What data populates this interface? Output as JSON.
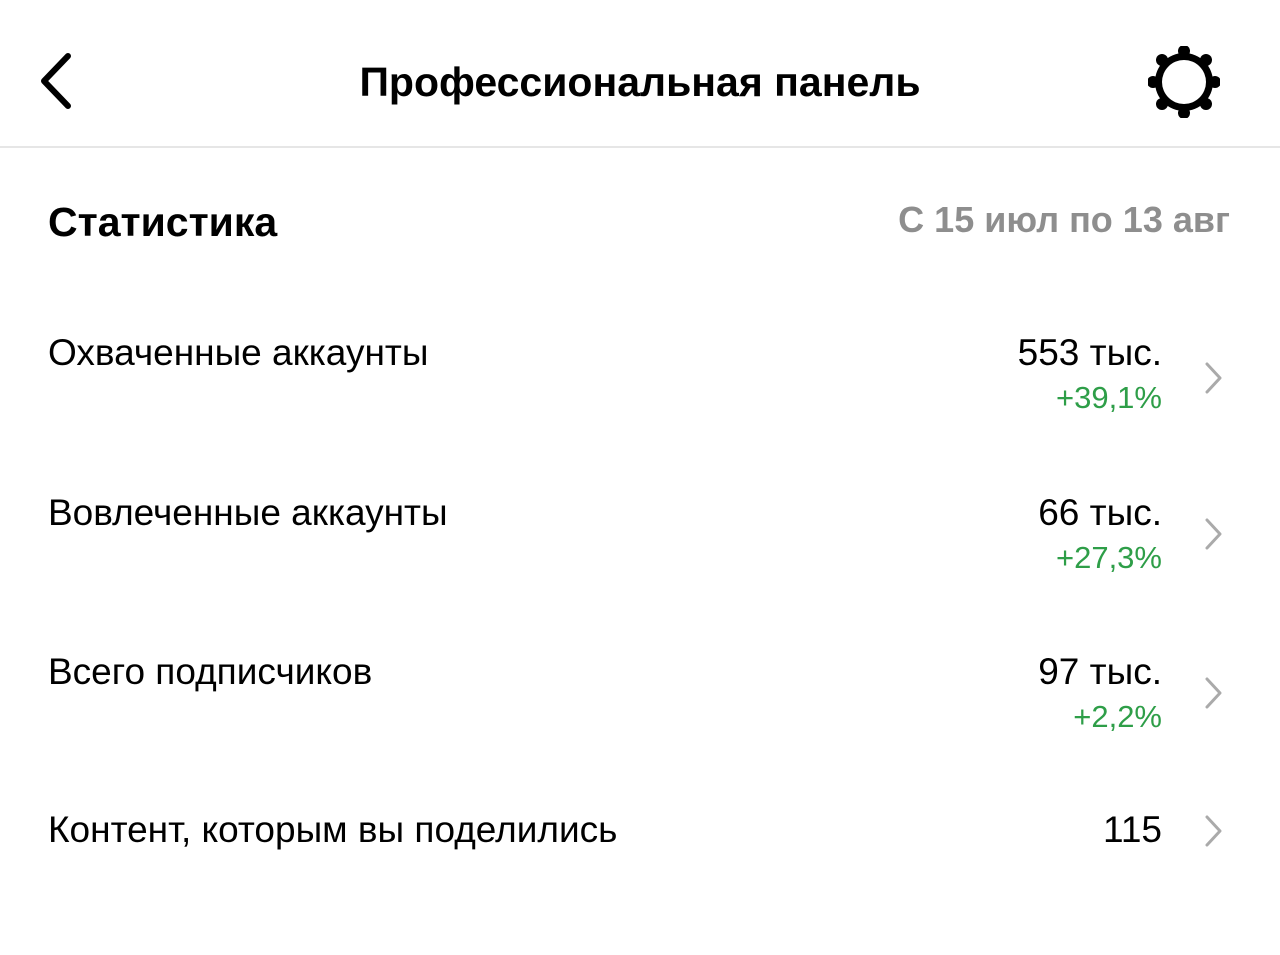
{
  "header": {
    "title": "Профессиональная панель",
    "back_icon": "chevron-left-icon",
    "settings_icon": "gear-icon"
  },
  "stats": {
    "title": "Статистика",
    "date_range": "С 15 июл по 13 авг",
    "positive_color": "#2e9e48",
    "rows": [
      {
        "label": "Охваченные аккаунты",
        "value": "553 тыс.",
        "delta": "+39,1%"
      },
      {
        "label": "Вовлеченные аккаунты",
        "value": "66 тыс.",
        "delta": "+27,3%"
      },
      {
        "label": "Всего подписчиков",
        "value": "97 тыс.",
        "delta": "+2,2%"
      },
      {
        "label": "Контент, которым вы поделились",
        "value": "115"
      }
    ]
  }
}
